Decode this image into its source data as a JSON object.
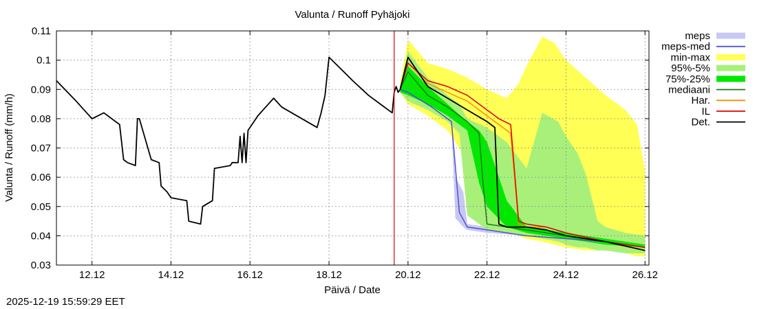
{
  "chart_data": {
    "type": "line",
    "title": "Valunta / Runoff  Pyhäjoki",
    "xlabel": "Päivä / Date",
    "ylabel": "Valunta / Runoff (mm/h)",
    "x_unit": "day offset from 12.12 00:00",
    "xlim": [
      -0.9,
      14.1
    ],
    "ylim": [
      0.03,
      0.11
    ],
    "grid": true,
    "legend_position": "outside-right",
    "x_ticks": [
      {
        "value": 0,
        "label": "12.12"
      },
      {
        "value": 2,
        "label": "14.12"
      },
      {
        "value": 4,
        "label": "16.12"
      },
      {
        "value": 6,
        "label": "18.12"
      },
      {
        "value": 8,
        "label": "20.12"
      },
      {
        "value": 10,
        "label": "22.12"
      },
      {
        "value": 12,
        "label": "24.12"
      },
      {
        "value": 14,
        "label": "26.12"
      }
    ],
    "y_ticks": [
      {
        "value": 0.03,
        "label": "0.03"
      },
      {
        "value": 0.04,
        "label": "0.04"
      },
      {
        "value": 0.05,
        "label": "0.05"
      },
      {
        "value": 0.06,
        "label": "0.06"
      },
      {
        "value": 0.07,
        "label": "0.07"
      },
      {
        "value": 0.08,
        "label": "0.08"
      },
      {
        "value": 0.09,
        "label": "0.09"
      },
      {
        "value": 0.1,
        "label": "0.1"
      },
      {
        "value": 0.11,
        "label": "0.11"
      }
    ],
    "forecast_start": 7.65,
    "forecast_marker_color": "#e00000",
    "legend": [
      {
        "name": "meps",
        "kind": "band",
        "color": "#c8c8f4"
      },
      {
        "name": "meps-med",
        "kind": "line",
        "color": "#5050d0"
      },
      {
        "name": "min-max",
        "kind": "band",
        "color": "#ffff55"
      },
      {
        "name": "95%-5%",
        "kind": "band",
        "color": "#a8f07a"
      },
      {
        "name": "75%-25%",
        "kind": "band",
        "color": "#00e800"
      },
      {
        "name": "mediaani",
        "kind": "line",
        "color": "#1a7a1a"
      },
      {
        "name": "Har.",
        "kind": "line",
        "color": "#ff8c00"
      },
      {
        "name": "IL",
        "kind": "line",
        "color": "#e00000"
      },
      {
        "name": "Det.",
        "kind": "line",
        "color": "#000000"
      }
    ],
    "series": [
      {
        "name": "observed",
        "color": "#000000",
        "x": [
          -0.9,
          -0.4,
          0.0,
          0.3,
          0.7,
          0.8,
          0.9,
          1.1,
          1.15,
          1.2,
          1.5,
          1.7,
          1.75,
          1.9,
          2.0,
          2.4,
          2.45,
          2.75,
          2.8,
          3.05,
          3.1,
          3.5,
          3.55,
          3.7,
          3.75,
          3.8,
          3.85,
          3.9,
          3.95,
          4.1,
          4.2,
          4.6,
          4.8,
          5.7,
          5.8,
          5.9,
          6.0,
          6.3,
          6.6,
          7.0,
          7.3,
          7.6,
          7.65,
          7.7,
          7.75,
          7.8
        ],
        "y": [
          0.093,
          0.086,
          0.08,
          0.082,
          0.078,
          0.066,
          0.065,
          0.064,
          0.08,
          0.08,
          0.066,
          0.065,
          0.057,
          0.055,
          0.053,
          0.052,
          0.045,
          0.044,
          0.05,
          0.052,
          0.063,
          0.064,
          0.065,
          0.065,
          0.074,
          0.065,
          0.075,
          0.065,
          0.076,
          0.079,
          0.081,
          0.087,
          0.084,
          0.077,
          0.082,
          0.088,
          0.101,
          0.097,
          0.093,
          0.088,
          0.085,
          0.082,
          0.089,
          0.091,
          0.089,
          0.09
        ]
      },
      {
        "name": "meps",
        "color": "#c8c8f4",
        "x": [
          7.8,
          8.0,
          8.6,
          9.1,
          9.2,
          9.4,
          9.5,
          10.0,
          11.0,
          12.0,
          13.0,
          14.0
        ],
        "upper": [
          0.091,
          0.094,
          0.085,
          0.081,
          0.06,
          0.055,
          0.044,
          0.043,
          0.041,
          0.04,
          0.039,
          0.037
        ],
        "lower": [
          0.089,
          0.088,
          0.083,
          0.078,
          0.046,
          0.043,
          0.042,
          0.041,
          0.04,
          0.039,
          0.037,
          0.035
        ]
      },
      {
        "name": "meps-med",
        "color": "#5050d0",
        "x": [
          7.8,
          8.0,
          8.6,
          9.1,
          9.3,
          9.5,
          10.0,
          11.0,
          12.0,
          13.0,
          14.0
        ],
        "values": [
          0.09,
          0.089,
          0.084,
          0.079,
          0.048,
          0.043,
          0.042,
          0.04,
          0.039,
          0.038,
          0.036
        ]
      },
      {
        "name": "min-max",
        "color": "#ffff55",
        "x": [
          7.8,
          8.0,
          8.5,
          9.0,
          9.5,
          10.0,
          10.5,
          10.8,
          11.0,
          11.4,
          11.7,
          12.0,
          12.5,
          13.0,
          13.5,
          13.8,
          14.0
        ],
        "upper": [
          0.092,
          0.107,
          0.099,
          0.097,
          0.094,
          0.09,
          0.087,
          0.092,
          0.098,
          0.108,
          0.106,
          0.1,
          0.094,
          0.088,
          0.083,
          0.078,
          0.062
        ],
        "lower": [
          0.089,
          0.085,
          0.081,
          0.076,
          0.066,
          0.043,
          0.041,
          0.04,
          0.039,
          0.038,
          0.037,
          0.036,
          0.035,
          0.035,
          0.034,
          0.033,
          0.033
        ]
      },
      {
        "name": "95%-5%",
        "color": "#a8f07a",
        "x": [
          7.8,
          8.0,
          8.5,
          9.0,
          9.3,
          9.5,
          10.0,
          10.5,
          11.0,
          11.4,
          11.8,
          12.0,
          12.3,
          12.5,
          12.8,
          13.0,
          13.5,
          14.0
        ],
        "upper": [
          0.091,
          0.103,
          0.094,
          0.088,
          0.085,
          0.08,
          0.077,
          0.072,
          0.063,
          0.082,
          0.079,
          0.074,
          0.068,
          0.061,
          0.045,
          0.043,
          0.041,
          0.04
        ],
        "lower": [
          0.089,
          0.086,
          0.083,
          0.079,
          0.075,
          0.047,
          0.042,
          0.041,
          0.04,
          0.039,
          0.038,
          0.037,
          0.036,
          0.036,
          0.035,
          0.035,
          0.034,
          0.034
        ]
      },
      {
        "name": "75%-25%",
        "color": "#00e800",
        "x": [
          7.8,
          8.0,
          8.5,
          9.0,
          9.5,
          9.8,
          10.0,
          10.5,
          11.0,
          12.0,
          13.0,
          14.0
        ],
        "upper": [
          0.09,
          0.098,
          0.091,
          0.085,
          0.079,
          0.076,
          0.072,
          0.052,
          0.043,
          0.041,
          0.039,
          0.037
        ],
        "lower": [
          0.089,
          0.088,
          0.085,
          0.081,
          0.076,
          0.058,
          0.05,
          0.043,
          0.041,
          0.039,
          0.037,
          0.036
        ]
      },
      {
        "name": "mediaani",
        "color": "#1a7a1a",
        "x": [
          7.8,
          8.0,
          8.5,
          9.0,
          9.5,
          9.8,
          9.9,
          10.0,
          10.5,
          11.0,
          12.0,
          13.0,
          14.0
        ],
        "values": [
          0.09,
          0.096,
          0.088,
          0.084,
          0.079,
          0.075,
          0.058,
          0.044,
          0.043,
          0.042,
          0.04,
          0.038,
          0.036
        ]
      },
      {
        "name": "Har.",
        "color": "#ff8c00",
        "x": [
          7.8,
          8.0,
          8.5,
          9.0,
          9.5,
          10.0,
          10.3,
          10.6,
          10.8,
          11.0,
          11.5,
          12.0,
          13.0,
          14.0
        ],
        "values": [
          0.09,
          0.099,
          0.092,
          0.089,
          0.086,
          0.081,
          0.078,
          0.075,
          0.044,
          0.043,
          0.043,
          0.041,
          0.038,
          0.036
        ]
      },
      {
        "name": "IL",
        "color": "#e00000",
        "x": [
          7.8,
          8.0,
          8.5,
          9.0,
          9.5,
          10.0,
          10.3,
          10.6,
          10.8,
          11.0,
          11.5,
          12.0,
          13.0,
          14.0
        ],
        "values": [
          0.09,
          0.099,
          0.093,
          0.091,
          0.088,
          0.083,
          0.08,
          0.078,
          0.045,
          0.044,
          0.043,
          0.041,
          0.038,
          0.036
        ]
      },
      {
        "name": "Det.",
        "color": "#000000",
        "x": [
          7.8,
          8.0,
          8.5,
          9.0,
          9.5,
          10.0,
          10.2,
          10.3,
          10.5,
          11.0,
          11.5,
          12.0,
          13.0,
          14.0
        ],
        "values": [
          0.09,
          0.101,
          0.091,
          0.087,
          0.083,
          0.079,
          0.077,
          0.044,
          0.043,
          0.043,
          0.042,
          0.04,
          0.038,
          0.035
        ]
      }
    ]
  },
  "footer": {
    "timestamp": "2025-12-19 15:59:29 EET"
  }
}
